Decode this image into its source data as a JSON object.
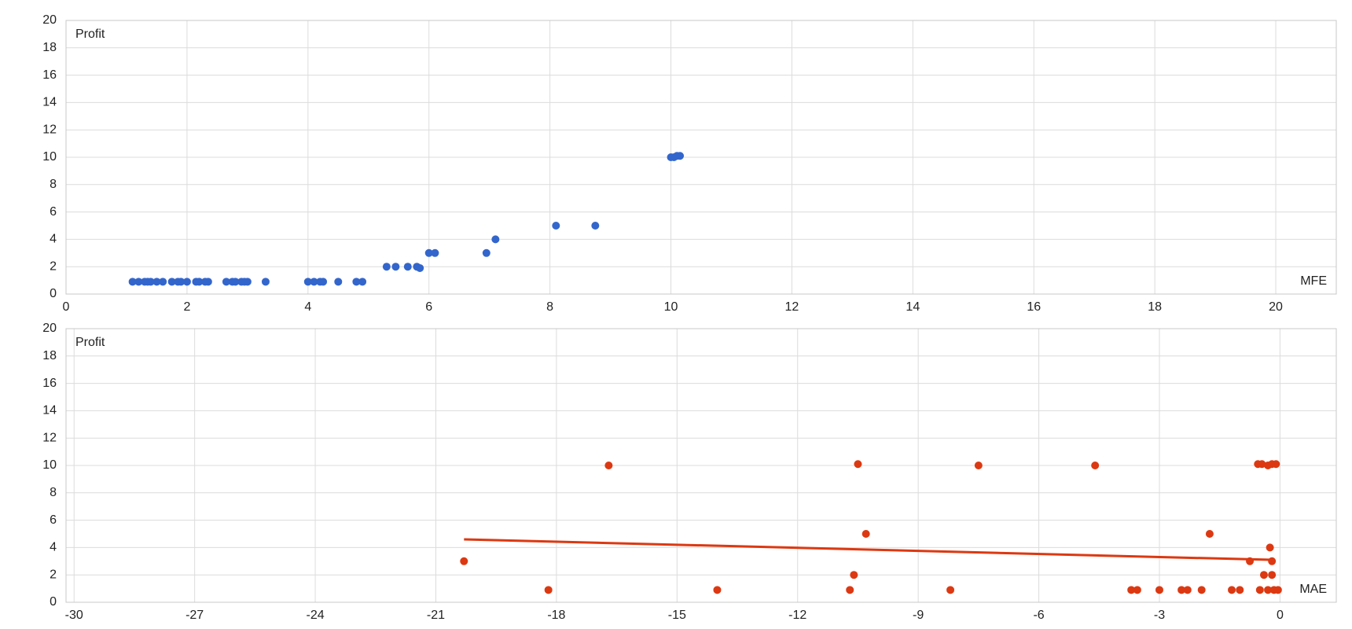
{
  "chart_data": [
    {
      "type": "scatter",
      "x_label": "MFE",
      "y_label": "Profit",
      "color": "#3366cc",
      "grid": true,
      "xlim": [
        0,
        21
      ],
      "xticks": [
        0,
        2,
        4,
        6,
        8,
        10,
        12,
        14,
        16,
        18,
        20
      ],
      "ylim": [
        0,
        20
      ],
      "yticks": [
        0,
        2,
        4,
        6,
        8,
        10,
        12,
        14,
        16,
        18,
        20
      ],
      "x": [
        1.1,
        1.2,
        1.3,
        1.35,
        1.4,
        1.5,
        1.6,
        1.75,
        1.85,
        1.9,
        2.0,
        2.15,
        2.2,
        2.3,
        2.35,
        2.65,
        2.75,
        2.8,
        2.9,
        2.95,
        3.0,
        3.3,
        4.0,
        4.1,
        4.2,
        4.25,
        4.5,
        4.8,
        4.9,
        5.3,
        5.45,
        5.65,
        5.8,
        5.85,
        6.0,
        6.1,
        6.95,
        7.1,
        8.1,
        8.75,
        10.0,
        10.05,
        10.1,
        10.15
      ],
      "y": [
        0.9,
        0.9,
        0.9,
        0.9,
        0.9,
        0.9,
        0.9,
        0.9,
        0.9,
        0.9,
        0.9,
        0.9,
        0.9,
        0.9,
        0.9,
        0.9,
        0.9,
        0.9,
        0.9,
        0.9,
        0.9,
        0.9,
        0.9,
        0.9,
        0.9,
        0.9,
        0.9,
        0.9,
        0.9,
        2,
        2,
        2,
        2,
        1.9,
        3,
        3,
        3,
        4,
        5,
        5,
        10,
        10,
        10.1,
        10.1
      ]
    },
    {
      "type": "scatter",
      "x_label": "MAE",
      "y_label": "Profit",
      "color": "#dc3912",
      "grid": true,
      "xlim": [
        -30.2,
        1.4
      ],
      "xticks": [
        -30,
        -27,
        -24,
        -21,
        -18,
        -15,
        -12,
        -9,
        -6,
        -3,
        0
      ],
      "ylim": [
        0,
        20
      ],
      "yticks": [
        0,
        2,
        4,
        6,
        8,
        10,
        12,
        14,
        16,
        18,
        20
      ],
      "x": [
        -20.3,
        -18.2,
        -16.7,
        -14,
        -10.7,
        -10.6,
        -10.5,
        -10.3,
        -8.2,
        -7.5,
        -4.6,
        -3.7,
        -3.55,
        -3,
        -2.45,
        -2.3,
        -1.95,
        -1.75,
        -1.2,
        -1,
        -0.75,
        -0.55,
        -0.45,
        -0.4,
        -0.5,
        -0.3,
        -0.3,
        -0.25,
        -0.2,
        -0.2,
        -0.2,
        -0.15,
        -0.1,
        -0.05
      ],
      "y": [
        3,
        0.9,
        10,
        0.9,
        0.9,
        2,
        10.1,
        5,
        0.9,
        10,
        10,
        0.9,
        0.9,
        0.9,
        0.9,
        0.9,
        0.9,
        5,
        0.9,
        0.9,
        3,
        10.1,
        10.1,
        2,
        0.9,
        0.9,
        10,
        4,
        3,
        2,
        10.1,
        0.9,
        10.1,
        0.9
      ],
      "trendline": {
        "x": [
          -20.3,
          -0.2
        ],
        "y": [
          4.6,
          3.1
        ]
      }
    }
  ]
}
